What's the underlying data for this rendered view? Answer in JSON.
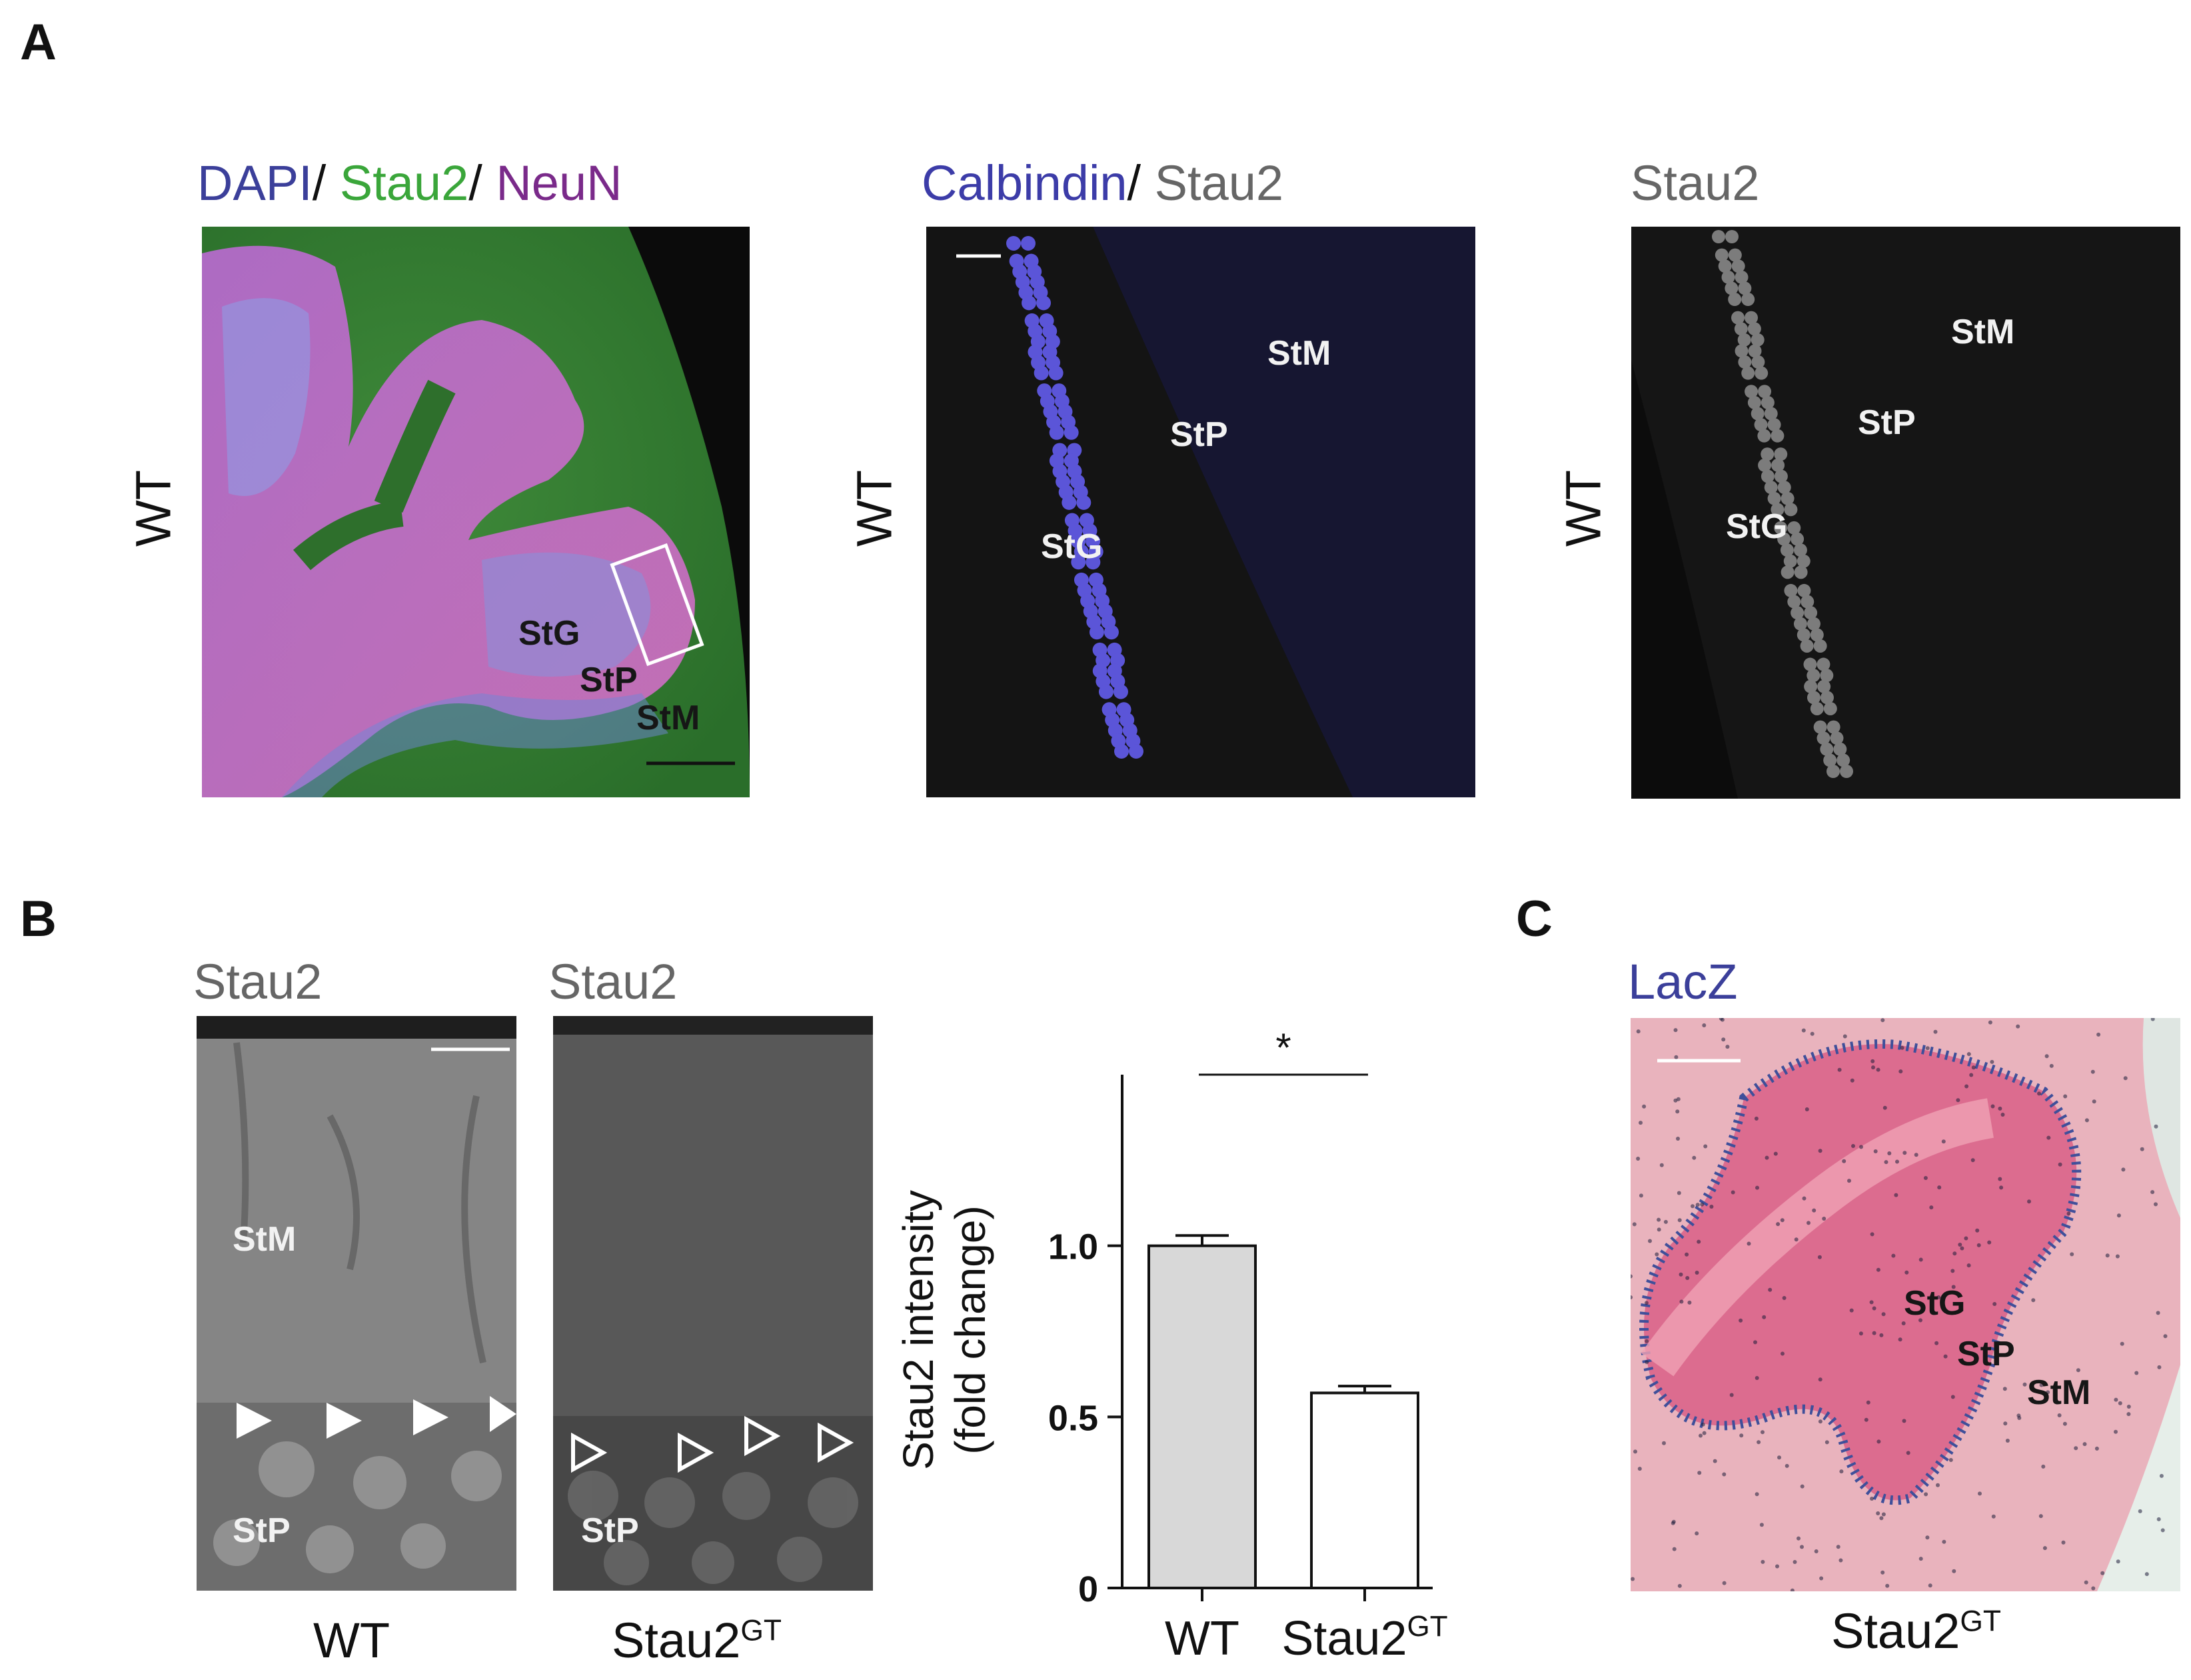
{
  "panels": {
    "A": {
      "letter": "A",
      "images": [
        {
          "stain": [
            {
              "text": "DAPI",
              "color": "#3b3f9a"
            },
            {
              "text": "/ ",
              "color": "#111111"
            },
            {
              "text": "Stau2",
              "color": "#3aa63a"
            },
            {
              "text": "/ ",
              "color": "#111111"
            },
            {
              "text": "NeuN",
              "color": "#7a2a8a"
            }
          ],
          "side_label": "WT",
          "regions": [
            "StG",
            "StP",
            "StM"
          ]
        },
        {
          "stain": [
            {
              "text": "Calbindin",
              "color": "#3c3ca8"
            },
            {
              "text": "/ ",
              "color": "#111111"
            },
            {
              "text": "Stau2",
              "color": "#666666"
            }
          ],
          "side_label": "WT",
          "regions": [
            "StM",
            "StP",
            "StG"
          ]
        },
        {
          "stain": [
            {
              "text": "Stau2",
              "color": "#666666"
            }
          ],
          "side_label": "WT",
          "regions": [
            "StM",
            "StP",
            "StG"
          ]
        }
      ]
    },
    "B": {
      "letter": "B",
      "images": [
        {
          "stain": "Stau2",
          "stain_color": "#666666",
          "regions": [
            "StM",
            "StP"
          ],
          "bottom": {
            "main": "WT",
            "sup": ""
          }
        },
        {
          "stain": "Stau2",
          "stain_color": "#666666",
          "regions": [
            "StP"
          ],
          "bottom": {
            "main": "Stau2",
            "sup": "GT"
          }
        }
      ]
    },
    "C": {
      "letter": "C",
      "stain": "LacZ",
      "stain_color": "#3b3f9a",
      "regions": [
        "StG",
        "StP",
        "StM"
      ],
      "bottom": {
        "main": "Stau2",
        "sup": "GT"
      }
    }
  },
  "chart_data": {
    "type": "bar",
    "categories": [
      "WT",
      "Stau2GT"
    ],
    "category_labels": [
      {
        "main": "WT",
        "sup": ""
      },
      {
        "main": "Stau2",
        "sup": "GT"
      }
    ],
    "values": [
      1.0,
      0.57
    ],
    "errors": [
      0.03,
      0.02
    ],
    "bar_colors": [
      "#d8d8d8",
      "#ffffff"
    ],
    "ylabel_lines": [
      "Stau2 intensity",
      "(fold change)"
    ],
    "yticks": [
      0,
      0.5,
      1.0
    ],
    "ytick_labels": [
      "0",
      "0.5",
      "1.0"
    ],
    "ylim": [
      0,
      1.5
    ],
    "significance": "*",
    "grid": false
  }
}
